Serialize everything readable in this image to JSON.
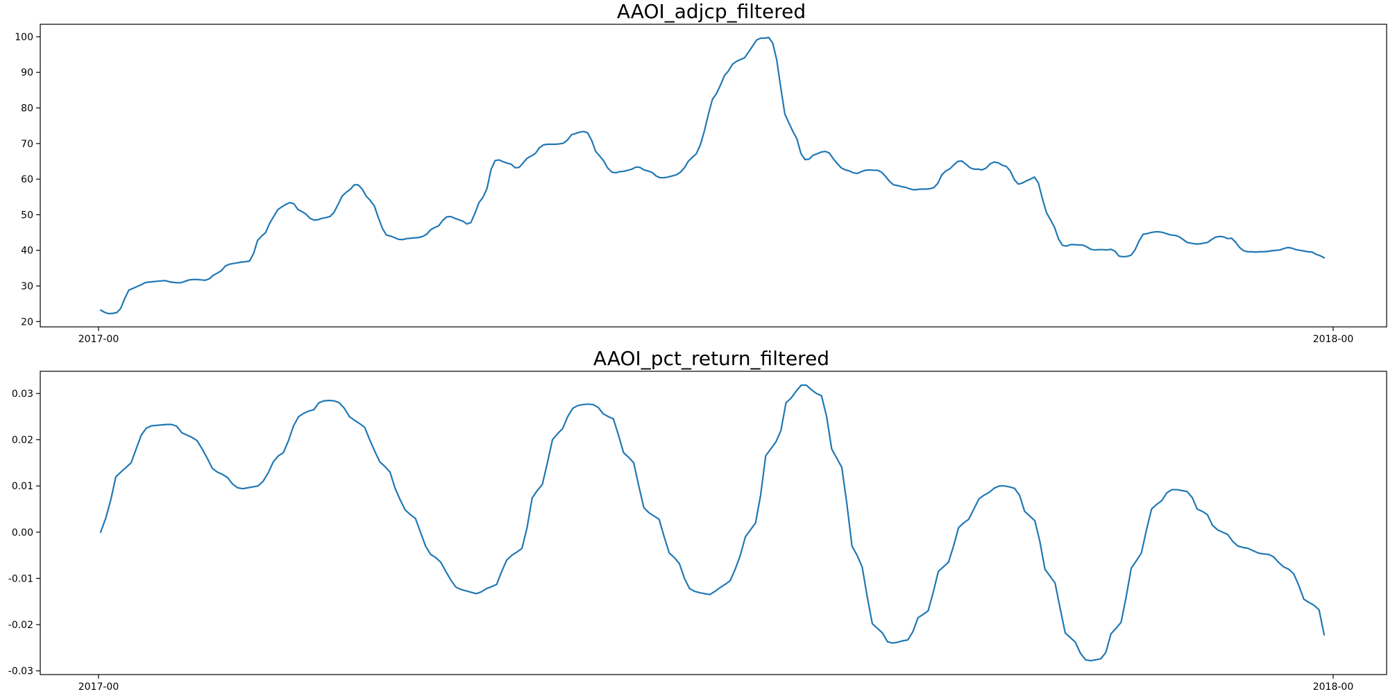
{
  "chart_data": [
    {
      "type": "line",
      "title": "AAOI_adjcp_filtered",
      "xlabel": "",
      "ylabel": "",
      "x_ticks": [
        "2017-00",
        "2018-00"
      ],
      "ylim": [
        18.5,
        103.5
      ],
      "y_ticks": [
        20,
        30,
        40,
        50,
        60,
        70,
        80,
        90,
        100
      ],
      "y_tick_labels": [
        "20",
        "30",
        "40",
        "50",
        "60",
        "70",
        "80",
        "90",
        "100"
      ],
      "grid": false,
      "color": "#1f77b4",
      "series": [
        {
          "values": [
            23.2,
            22.6,
            22.2,
            22.3,
            22.5,
            23.7,
            26.5,
            28.8,
            29.3,
            29.8,
            30.3,
            30.9,
            31.1,
            31.2,
            31.3,
            31.4,
            31.5,
            31.2,
            31.0,
            30.9,
            30.9,
            31.3,
            31.7,
            31.8,
            31.8,
            31.7,
            31.6,
            32.0,
            33.0,
            33.6,
            34.3,
            35.6,
            36.1,
            36.3,
            36.5,
            36.7,
            36.8,
            37.0,
            39.1,
            42.8,
            44.0,
            45.0,
            47.6,
            49.5,
            51.4,
            52.2,
            52.9,
            53.4,
            53.1,
            51.5,
            50.9,
            50.2,
            49.0,
            48.5,
            48.6,
            49.0,
            49.2,
            49.5,
            50.7,
            52.9,
            55.2,
            56.3,
            57.1,
            58.4,
            58.4,
            57.2,
            55.2,
            54.0,
            52.5,
            49.2,
            46.2,
            44.3,
            44.0,
            43.6,
            43.1,
            43.0,
            43.3,
            43.4,
            43.5,
            43.6,
            43.9,
            44.5,
            45.8,
            46.4,
            46.9,
            48.4,
            49.4,
            49.5,
            49.0,
            48.6,
            48.2,
            47.4,
            47.8,
            50.4,
            53.4,
            54.9,
            57.4,
            62.7,
            65.2,
            65.4,
            64.9,
            64.5,
            64.2,
            63.2,
            63.3,
            64.6,
            65.9,
            66.5,
            67.2,
            68.8,
            69.6,
            69.8,
            69.8,
            69.8,
            69.9,
            70.1,
            71.0,
            72.5,
            72.8,
            73.2,
            73.4,
            73.0,
            70.9,
            67.8,
            66.5,
            65.1,
            63.1,
            62.0,
            61.8,
            62.1,
            62.2,
            62.5,
            62.8,
            63.4,
            63.3,
            62.6,
            62.3,
            61.9,
            60.9,
            60.4,
            60.4,
            60.6,
            60.9,
            61.2,
            61.9,
            63.1,
            65.0,
            66.1,
            67.1,
            69.6,
            73.5,
            78.2,
            82.4,
            84.0,
            86.4,
            89.1,
            90.4,
            92.3,
            93.1,
            93.6,
            94.1,
            95.7,
            97.4,
            99.1,
            99.6,
            99.6,
            99.8,
            98.2,
            93.4,
            85.6,
            78.3,
            75.8,
            73.4,
            71.3,
            67.2,
            65.5,
            65.6,
            66.7,
            67.1,
            67.6,
            67.8,
            67.4,
            65.8,
            64.4,
            63.2,
            62.6,
            62.3,
            61.8,
            61.6,
            62.1,
            62.5,
            62.6,
            62.5,
            62.5,
            62.0,
            60.8,
            59.4,
            58.4,
            58.2,
            57.9,
            57.7,
            57.3,
            57.0,
            57.1,
            57.2,
            57.2,
            57.3,
            57.6,
            58.8,
            61.2,
            62.3,
            62.9,
            64.0,
            65.0,
            65.1,
            64.2,
            63.2,
            62.8,
            62.8,
            62.6,
            63.1,
            64.3,
            64.8,
            64.6,
            63.9,
            63.6,
            62.3,
            59.9,
            58.6,
            58.9,
            59.5,
            60.0,
            60.6,
            58.9,
            54.5,
            50.6,
            48.6,
            46.5,
            43.2,
            41.4,
            41.2,
            41.6,
            41.6,
            41.5,
            41.5,
            41.0,
            40.3,
            40.1,
            40.2,
            40.2,
            40.1,
            40.3,
            39.8,
            38.4,
            38.2,
            38.3,
            38.6,
            40.1,
            42.6,
            44.5,
            44.7,
            45.0,
            45.2,
            45.2,
            45.0,
            44.6,
            44.3,
            44.2,
            43.8,
            43.0,
            42.2,
            42.0,
            41.8,
            41.8,
            42.0,
            42.2,
            43.0,
            43.7,
            43.9,
            43.8,
            43.3,
            43.4,
            42.3,
            40.8,
            39.9,
            39.6,
            39.6,
            39.5,
            39.6,
            39.6,
            39.7,
            39.9,
            40.0,
            40.1,
            40.5,
            40.8,
            40.6,
            40.2,
            40.0,
            39.8,
            39.6,
            39.5,
            38.9,
            38.5,
            37.9
          ]
        }
      ]
    },
    {
      "type": "line",
      "title": "AAOI_pct_return_filtered",
      "xlabel": "",
      "ylabel": "",
      "x_ticks": [
        "2017-00",
        "2018-00"
      ],
      "ylim": [
        -0.0308,
        0.0348
      ],
      "y_ticks": [
        -0.03,
        -0.02,
        -0.01,
        0.0,
        0.01,
        0.02,
        0.03
      ],
      "y_tick_labels": [
        "-0.03",
        "-0.02",
        "-0.01",
        "0.00",
        "0.01",
        "0.02",
        "0.03"
      ],
      "grid": false,
      "color": "#1f77b4",
      "series": [
        {
          "values": [
            0.0,
            0.003,
            0.007,
            0.012,
            0.013,
            0.014,
            0.015,
            0.018,
            0.021,
            0.0225,
            0.023,
            0.0231,
            0.0232,
            0.0233,
            0.0233,
            0.0229,
            0.0215,
            0.021,
            0.0205,
            0.0198,
            0.018,
            0.016,
            0.0138,
            0.013,
            0.0125,
            0.0118,
            0.0104,
            0.0096,
            0.0094,
            0.0096,
            0.0098,
            0.01,
            0.011,
            0.0128,
            0.0152,
            0.0165,
            0.0172,
            0.0198,
            0.023,
            0.025,
            0.0257,
            0.0262,
            0.0265,
            0.028,
            0.0284,
            0.0285,
            0.0284,
            0.028,
            0.0268,
            0.025,
            0.0242,
            0.0235,
            0.0227,
            0.02,
            0.0175,
            0.0152,
            0.0142,
            0.013,
            0.0095,
            0.007,
            0.0048,
            0.0038,
            0.003,
            0.0,
            -0.003,
            -0.0048,
            -0.0055,
            -0.0065,
            -0.0085,
            -0.0104,
            -0.0119,
            -0.0124,
            -0.0127,
            -0.013,
            -0.0133,
            -0.0129,
            -0.0122,
            -0.0118,
            -0.0113,
            -0.0085,
            -0.006,
            -0.005,
            -0.0043,
            -0.0035,
            0.001,
            0.0074,
            0.009,
            0.0103,
            0.015,
            0.02,
            0.0213,
            0.0224,
            0.025,
            0.0268,
            0.0274,
            0.0276,
            0.0277,
            0.0276,
            0.027,
            0.0256,
            0.025,
            0.0245,
            0.021,
            0.0172,
            0.0162,
            0.015,
            0.01,
            0.0053,
            0.0042,
            0.0035,
            0.0028,
            -0.001,
            -0.0045,
            -0.0055,
            -0.0068,
            -0.01,
            -0.0122,
            -0.0128,
            -0.0131,
            -0.0133,
            -0.0135,
            -0.0128,
            -0.012,
            -0.0113,
            -0.0105,
            -0.008,
            -0.005,
            -0.001,
            0.0005,
            0.002,
            0.008,
            0.0165,
            0.018,
            0.0195,
            0.022,
            0.028,
            0.029,
            0.0305,
            0.0318,
            0.0318,
            0.0308,
            0.03,
            0.0295,
            0.025,
            0.018,
            0.016,
            0.014,
            0.006,
            -0.003,
            -0.005,
            -0.0075,
            -0.014,
            -0.0198,
            -0.0208,
            -0.0218,
            -0.0237,
            -0.024,
            -0.0238,
            -0.0235,
            -0.0233,
            -0.0215,
            -0.0185,
            -0.0178,
            -0.017,
            -0.013,
            -0.0085,
            -0.0075,
            -0.0065,
            -0.003,
            0.001,
            0.002,
            0.0028,
            0.005,
            0.0072,
            0.008,
            0.0086,
            0.0095,
            0.01,
            0.01,
            0.0098,
            0.0095,
            0.008,
            0.0045,
            0.0035,
            0.0025,
            -0.002,
            -0.008,
            -0.0095,
            -0.011,
            -0.0165,
            -0.0218,
            -0.0228,
            -0.0238,
            -0.0262,
            -0.0276,
            -0.0278,
            -0.0276,
            -0.0274,
            -0.026,
            -0.022,
            -0.0208,
            -0.0195,
            -0.014,
            -0.0078,
            -0.0062,
            -0.0045,
            0.0005,
            0.005,
            0.006,
            0.0068,
            0.0085,
            0.0092,
            0.0092,
            0.009,
            0.0088,
            0.0075,
            0.005,
            0.0045,
            0.0038,
            0.0015,
            0.0005,
            0.0,
            -0.0005,
            -0.002,
            -0.003,
            -0.0033,
            -0.0035,
            -0.004,
            -0.0045,
            -0.0047,
            -0.0048,
            -0.0053,
            -0.0065,
            -0.0075,
            -0.008,
            -0.009,
            -0.0115,
            -0.0145,
            -0.0152,
            -0.0158,
            -0.0168,
            -0.0222
          ]
        }
      ]
    }
  ]
}
